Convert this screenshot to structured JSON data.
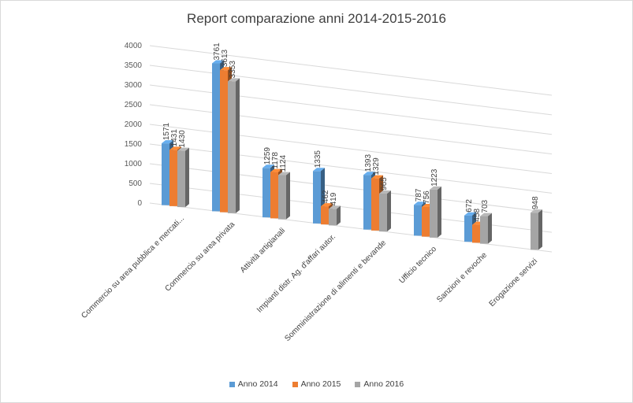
{
  "chart_data": {
    "type": "bar",
    "subtype": "3d-clustered-column",
    "title": "Report comparazione anni 2014-2015-2016",
    "xlabel": "",
    "ylabel": "",
    "ylim": [
      0,
      4000
    ],
    "yticks": [
      "0",
      "500",
      "1000",
      "1500",
      "2000",
      "2500",
      "3000",
      "3500",
      "4000"
    ],
    "grid": true,
    "legend_position": "bottom",
    "categories": [
      "Commercio su area pubblica e mercati...",
      "Commercio su area privata",
      "Attività artigianali",
      "Impianti distr. Ag. d'affari autor.",
      "Somministrazione di alimenti e bevande",
      "Ufficio tecnico",
      "Sanzioni e revoche",
      "Erogazione servizi"
    ],
    "series": [
      {
        "name": "Anno 2014",
        "color": "#5b9bd5",
        "values": [
          1571,
          3761,
          1259,
          1335,
          1393,
          787,
          672,
          null
        ],
        "labels": [
          "1571",
          "3761",
          "1259",
          "1335",
          "1393",
          "787",
          "672",
          ""
        ]
      },
      {
        "name": "Anno 2015",
        "color": "#ed7d31",
        "values": [
          1431,
          3613,
          1178,
          462,
          1329,
          756,
          458,
          null
        ],
        "labels": [
          "1431",
          "3613",
          "1178",
          "462",
          "1329",
          "756",
          "458",
          ""
        ]
      },
      {
        "name": "Anno 2016",
        "color": "#a5a5a5",
        "values": [
          1430,
          3353,
          1124,
          419,
          965,
          1223,
          703,
          948
        ],
        "labels": [
          "1430",
          "3353",
          "1124",
          "419",
          "965",
          "1223",
          "703",
          "948"
        ]
      }
    ]
  }
}
